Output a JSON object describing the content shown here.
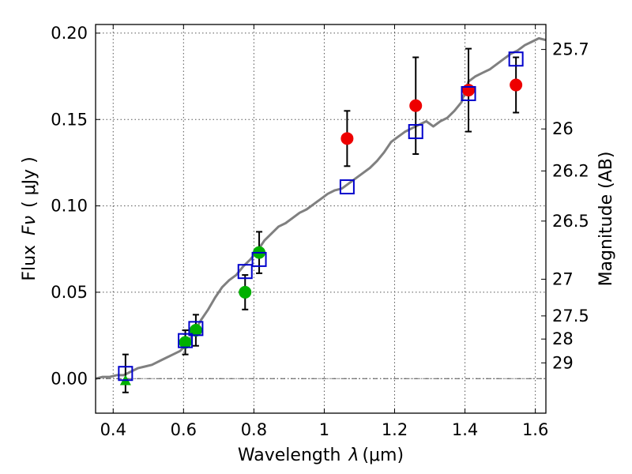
{
  "chart_data": {
    "type": "scatter",
    "xlabel": "Wavelength",
    "xlabel_symbol": "λ",
    "xlabel_unit": "(μm)",
    "ylabel": "Flux",
    "ylabel_symbol": "Fν",
    "ylabel_unit": "( μJy )",
    "ylabel_right": "Magnitude (AB)",
    "xlim": [
      0.35,
      1.63
    ],
    "ylim": [
      -0.02,
      0.205
    ],
    "x_ticks": [
      0.4,
      0.6,
      0.8,
      1.0,
      1.2,
      1.4,
      1.6
    ],
    "x_tick_labels": [
      "0.4",
      "0.6",
      "0.8",
      "1",
      "1.2",
      "1.4",
      "1.6"
    ],
    "y_ticks": [
      0.0,
      0.05,
      0.1,
      0.15,
      0.2
    ],
    "y_tick_labels": [
      "0.00",
      "0.05",
      "0.10",
      "0.15",
      "0.20"
    ],
    "mag_ticks": [
      25.7,
      26,
      26.2,
      26.5,
      27,
      27.5,
      28,
      29
    ],
    "mag_tick_labels": [
      "25.7",
      "26",
      "26.2",
      "26.5",
      "27",
      "27.5",
      "28",
      "29"
    ],
    "grid": true,
    "colors": {
      "model": "#808080",
      "green": "#00b000",
      "red": "#ee0000",
      "blue": "#0000cc",
      "errorbar": "#000000"
    },
    "series": [
      {
        "name": "model spectrum",
        "kind": "line",
        "x": [
          0.35,
          0.37,
          0.39,
          0.41,
          0.43,
          0.45,
          0.47,
          0.49,
          0.51,
          0.53,
          0.55,
          0.57,
          0.59,
          0.61,
          0.63,
          0.65,
          0.67,
          0.69,
          0.71,
          0.73,
          0.75,
          0.77,
          0.79,
          0.81,
          0.83,
          0.85,
          0.87,
          0.89,
          0.91,
          0.93,
          0.95,
          0.97,
          0.99,
          1.01,
          1.03,
          1.05,
          1.07,
          1.09,
          1.11,
          1.13,
          1.15,
          1.17,
          1.19,
          1.21,
          1.23,
          1.25,
          1.27,
          1.29,
          1.31,
          1.33,
          1.35,
          1.37,
          1.39,
          1.41,
          1.43,
          1.45,
          1.47,
          1.49,
          1.51,
          1.53,
          1.55,
          1.57,
          1.59,
          1.61,
          1.63
        ],
        "y": [
          0.0,
          0.001,
          0.001,
          0.002,
          0.002,
          0.004,
          0.006,
          0.007,
          0.008,
          0.01,
          0.012,
          0.014,
          0.016,
          0.02,
          0.027,
          0.034,
          0.04,
          0.047,
          0.053,
          0.057,
          0.06,
          0.065,
          0.069,
          0.074,
          0.08,
          0.084,
          0.088,
          0.09,
          0.093,
          0.096,
          0.098,
          0.101,
          0.104,
          0.107,
          0.109,
          0.11,
          0.113,
          0.116,
          0.119,
          0.122,
          0.126,
          0.131,
          0.137,
          0.14,
          0.143,
          0.145,
          0.147,
          0.149,
          0.146,
          0.149,
          0.151,
          0.155,
          0.16,
          0.172,
          0.175,
          0.177,
          0.179,
          0.182,
          0.185,
          0.188,
          0.19,
          0.193,
          0.195,
          0.197,
          0.196
        ]
      },
      {
        "name": "green photometry",
        "kind": "circle",
        "points": [
          {
            "x": 0.605,
            "y": 0.021,
            "err": 0.007
          },
          {
            "x": 0.635,
            "y": 0.028,
            "err": 0.009
          },
          {
            "x": 0.775,
            "y": 0.05,
            "err": 0.01
          },
          {
            "x": 0.815,
            "y": 0.073,
            "err": 0.012
          }
        ]
      },
      {
        "name": "green upper limit",
        "kind": "triangle",
        "points": [
          {
            "x": 0.435,
            "y": -0.001
          }
        ]
      },
      {
        "name": "red photometry",
        "kind": "circle",
        "points": [
          {
            "x": 1.065,
            "y": 0.139,
            "err": 0.016
          },
          {
            "x": 1.26,
            "y": 0.158,
            "err": 0.028
          },
          {
            "x": 1.41,
            "y": 0.167,
            "err": 0.024
          },
          {
            "x": 1.545,
            "y": 0.17,
            "err": 0.016
          }
        ]
      },
      {
        "name": "model synthetic photometry",
        "kind": "square",
        "points": [
          {
            "x": 0.435,
            "y": 0.003
          },
          {
            "x": 0.605,
            "y": 0.022
          },
          {
            "x": 0.635,
            "y": 0.029
          },
          {
            "x": 0.775,
            "y": 0.062
          },
          {
            "x": 0.815,
            "y": 0.069
          },
          {
            "x": 1.065,
            "y": 0.111
          },
          {
            "x": 1.26,
            "y": 0.143
          },
          {
            "x": 1.41,
            "y": 0.165
          },
          {
            "x": 1.545,
            "y": 0.185
          }
        ]
      },
      {
        "name": "square error bars",
        "kind": "errorbar",
        "points": [
          {
            "x": 0.435,
            "y": 0.003,
            "err": 0.011
          }
        ]
      }
    ]
  }
}
